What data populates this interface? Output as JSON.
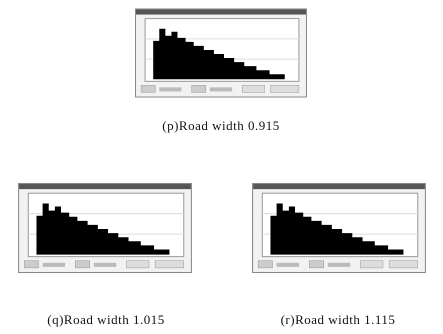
{
  "panels": [
    {
      "caption": "(p)Road width 0.915"
    },
    {
      "caption": "(q)Road width 1.015"
    },
    {
      "caption": "(r)Road width 1.115"
    }
  ]
}
